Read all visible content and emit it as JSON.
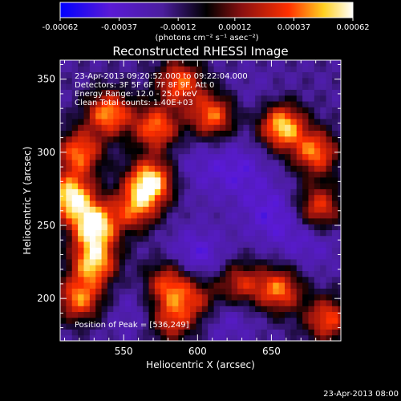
{
  "chart_data": {
    "type": "heatmap",
    "title": "Reconstructed RHESSI Image",
    "xlabel": "Heliocentric X (arcsec)",
    "ylabel": "Heliocentric Y (arcsec)",
    "xlim": [
      507,
      697
    ],
    "ylim": [
      171,
      363
    ],
    "x_ticks": [
      550,
      600,
      650
    ],
    "y_ticks": [
      200,
      250,
      300,
      350
    ],
    "colorbar": {
      "range": [
        -0.00062,
        0.00062
      ],
      "ticks": [
        -0.00062,
        -0.00037,
        -0.00012,
        0.00012,
        0.00037,
        0.00062
      ],
      "tick_labels": [
        "-0.00062",
        "-0.00037",
        "-0.00012",
        "0.00012",
        "0.00037",
        "0.00062"
      ],
      "unit_label": "(photons cm⁻² s⁻¹ asec⁻²)",
      "colormap": [
        "#0000ff",
        "#5a1ad6",
        "#4b1e9e",
        "#000000",
        "#8a1010",
        "#ff3000",
        "#ffd020",
        "#ffffff"
      ]
    },
    "annotations": [
      "23-Apr-2013 09:20:52.000 to 09:22:04.000",
      "Detectors: 3F 5F 6F 7F 8F 9F, Att 0",
      "Energy Range: 12.0 - 25.0 keV",
      "Clean     Total counts: 1.40E+03"
    ],
    "peak_label": "Position of Peak = [536,249]",
    "peak": [
      536,
      249
    ],
    "bright_sources": [
      {
        "x": 530,
        "y": 250,
        "value": 0.00062
      },
      {
        "x": 514,
        "y": 270,
        "value": 0.00058
      },
      {
        "x": 530,
        "y": 225,
        "value": 0.0005
      },
      {
        "x": 568,
        "y": 280,
        "value": 0.0006
      },
      {
        "x": 657,
        "y": 318,
        "value": 0.00055
      },
      {
        "x": 540,
        "y": 327,
        "value": 0.00045
      },
      {
        "x": 572,
        "y": 317,
        "value": 0.0004
      },
      {
        "x": 520,
        "y": 300,
        "value": 0.0004
      },
      {
        "x": 610,
        "y": 325,
        "value": 0.0004
      },
      {
        "x": 588,
        "y": 348,
        "value": 0.00038
      },
      {
        "x": 680,
        "y": 300,
        "value": 0.0004
      },
      {
        "x": 682,
        "y": 262,
        "value": 0.00035
      },
      {
        "x": 655,
        "y": 206,
        "value": 0.0004
      },
      {
        "x": 558,
        "y": 262,
        "value": 0.00032
      },
      {
        "x": 580,
        "y": 210,
        "value": 0.00035
      },
      {
        "x": 520,
        "y": 200,
        "value": 0.0004
      },
      {
        "x": 688,
        "y": 186,
        "value": 0.00035
      },
      {
        "x": 582,
        "y": 185,
        "value": 0.00028
      },
      {
        "x": 628,
        "y": 210,
        "value": 0.00028
      },
      {
        "x": 600,
        "y": 200,
        "value": 0.00022
      }
    ],
    "dim_regions": [
      {
        "x": 628,
        "y": 288,
        "value": -0.00038
      },
      {
        "x": 650,
        "y": 258,
        "value": -0.0004
      },
      {
        "x": 600,
        "y": 228,
        "value": -0.00042
      },
      {
        "x": 620,
        "y": 190,
        "value": -0.00035
      },
      {
        "x": 675,
        "y": 240,
        "value": -0.00035
      },
      {
        "x": 600,
        "y": 290,
        "value": -0.0003
      },
      {
        "x": 560,
        "y": 190,
        "value": -0.0003
      },
      {
        "x": 640,
        "y": 335,
        "value": -0.00025
      }
    ]
  },
  "footer_timestamp": "23-Apr-2013 08:00"
}
